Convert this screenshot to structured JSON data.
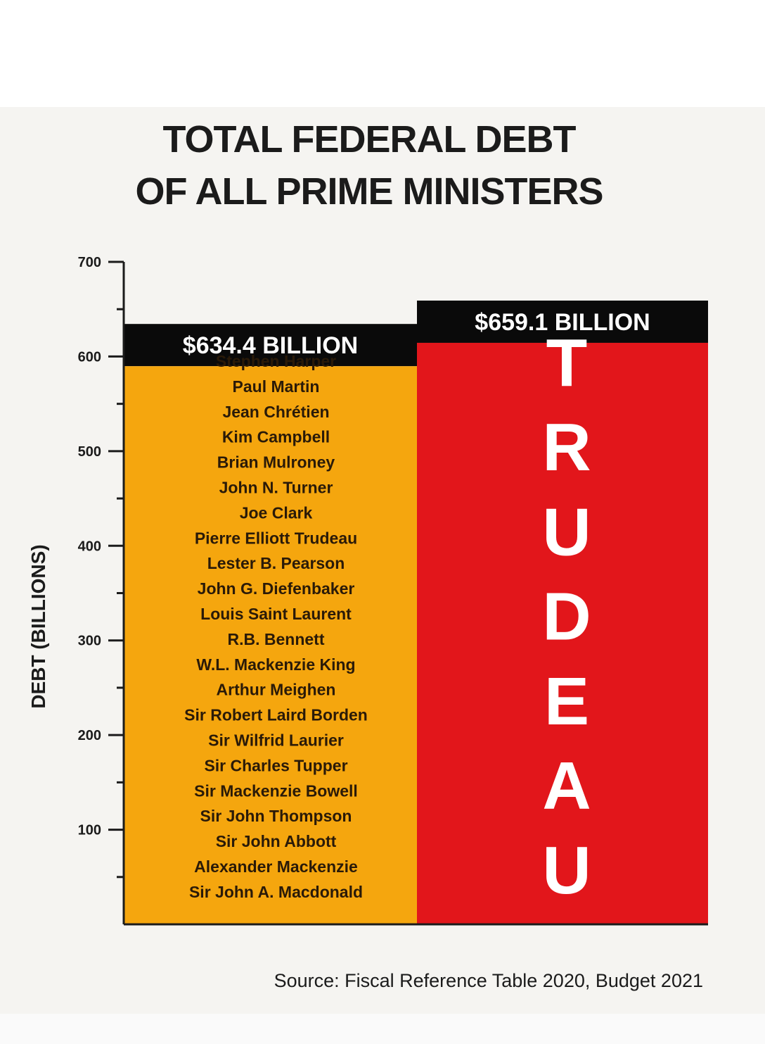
{
  "title_lines": [
    "TOTAL FEDERAL DEBT",
    "OF ALL PRIME MINISTERS"
  ],
  "source": "Source: Fiscal Reference Table 2020, Budget 2021",
  "colors": {
    "orange": "#f5a60e",
    "red": "#e2161b",
    "label_band": "#0a0a0a",
    "axis": "#1b1b1b"
  },
  "chart_data": {
    "type": "bar",
    "title": "TOTAL FEDERAL DEBT OF ALL PRIME MINISTERS",
    "ylabel": "DEBT (BILLIONS)",
    "xlabel": "",
    "ylim": [
      0,
      700
    ],
    "yticks": [
      100,
      200,
      300,
      400,
      500,
      600,
      700
    ],
    "grid": false,
    "bars": [
      {
        "value": 634.4,
        "value_label": "$634.4 BILLION",
        "color": "#f5a60e",
        "names": [
          "Stephen Harper",
          "Paul Martin",
          "Jean Chrétien",
          "Kim Campbell",
          "Brian Mulroney",
          "John N. Turner",
          "Joe Clark",
          "Pierre Elliott Trudeau",
          "Lester B. Pearson",
          "John G. Diefenbaker",
          "Louis Saint Laurent",
          "R.B. Bennett",
          "W.L. Mackenzie King",
          "Arthur Meighen",
          "Sir Robert Laird Borden",
          "Sir Wilfrid Laurier",
          "Sir Charles Tupper",
          "Sir Mackenzie Bowell",
          "Sir John Thompson",
          "Sir John Abbott",
          "Alexander Mackenzie",
          "Sir John A. Macdonald"
        ]
      },
      {
        "value": 659.1,
        "value_label": "$659.1 BILLION",
        "color": "#e2161b",
        "letters": [
          "T",
          "R",
          "U",
          "D",
          "E",
          "A",
          "U"
        ]
      }
    ]
  }
}
